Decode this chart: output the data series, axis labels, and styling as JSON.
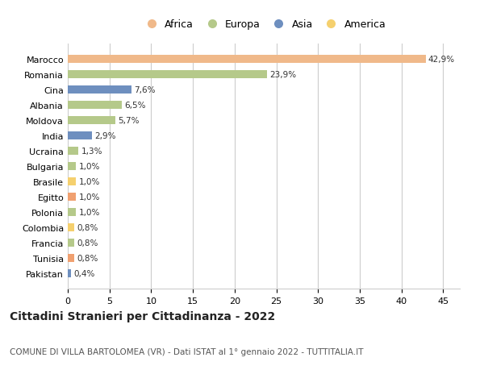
{
  "countries": [
    "Marocco",
    "Romania",
    "Cina",
    "Albania",
    "Moldova",
    "India",
    "Ucraina",
    "Bulgaria",
    "Brasile",
    "Egitto",
    "Polonia",
    "Colombia",
    "Francia",
    "Tunisia",
    "Pakistan"
  ],
  "values": [
    42.9,
    23.9,
    7.6,
    6.5,
    5.7,
    2.9,
    1.3,
    1.0,
    1.0,
    1.0,
    1.0,
    0.8,
    0.8,
    0.8,
    0.4
  ],
  "labels": [
    "42,9%",
    "23,9%",
    "7,6%",
    "6,5%",
    "5,7%",
    "2,9%",
    "1,3%",
    "1,0%",
    "1,0%",
    "1,0%",
    "1,0%",
    "0,8%",
    "0,8%",
    "0,8%",
    "0,4%"
  ],
  "colors": [
    "#f0b98a",
    "#b5c98a",
    "#6e8fbf",
    "#b5c98a",
    "#b5c98a",
    "#6e8fbf",
    "#b5c98a",
    "#b5c98a",
    "#f5d06e",
    "#f0a070",
    "#b5c98a",
    "#f5d06e",
    "#b5c98a",
    "#f0a070",
    "#6e8fbf"
  ],
  "legend_labels": [
    "Africa",
    "Europa",
    "Asia",
    "America"
  ],
  "legend_colors": [
    "#f0b98a",
    "#b5c98a",
    "#6e8fbf",
    "#f5d06e"
  ],
  "title": "Cittadini Stranieri per Cittadinanza - 2022",
  "subtitle": "COMUNE DI VILLA BARTOLOMEA (VR) - Dati ISTAT al 1° gennaio 2022 - TUTTITALIA.IT",
  "xlim": [
    0,
    47
  ],
  "xticks": [
    0,
    5,
    10,
    15,
    20,
    25,
    30,
    35,
    40,
    45
  ],
  "bg_color": "#ffffff",
  "grid_color": "#cccccc",
  "bar_height": 0.55,
  "label_fontsize": 7.5,
  "title_fontsize": 10,
  "subtitle_fontsize": 7.5,
  "tick_fontsize": 8,
  "ytick_fontsize": 8
}
